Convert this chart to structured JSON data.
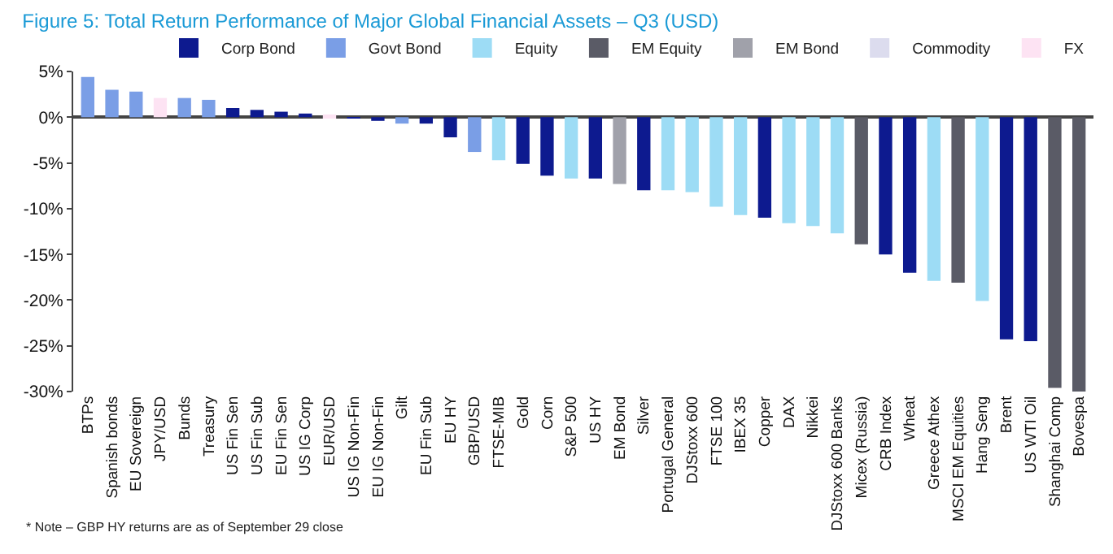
{
  "chart_data": {
    "type": "bar",
    "title": "Figure 5: Total Return Performance of Major Global Financial Assets – Q3 (USD)",
    "annotations": [
      "* Note – GBP HY returns are as of September 29 close"
    ],
    "categories": [
      "BTPs",
      "Spanish bonds",
      "EU Sovereign",
      "JPY/USD",
      "Bunds",
      "Treasury",
      "US Fin Sen",
      "US Fin Sub",
      "EU Fin Sen",
      "US IG Corp",
      "EUR/USD",
      "US IG Non-Fin",
      "EU IG Non-Fin",
      "Gilt",
      "EU Fin Sub",
      "EU HY",
      "GBP/USD",
      "FTSE-MIB",
      "Gold",
      "Corn",
      "S&P 500",
      "US HY",
      "EM Bond",
      "Silver",
      "Portugal General",
      "DJStoxx 600",
      "FTSE 100",
      "IBEX 35",
      "Copper",
      "DAX",
      "Nikkei",
      "DJStoxx 600 Banks",
      "Micex (Russia)",
      "CRB Index",
      "Wheat",
      "Greece Athex",
      "MSCI EM Equities",
      "Hang Seng",
      "Brent",
      "US WTI Oil",
      "Shanghai Comp",
      "Bovespa"
    ],
    "series": [
      {
        "name": "Corp Bond",
        "color": "#0d1a8f",
        "values": [
          null,
          null,
          null,
          null,
          null,
          null,
          1.0,
          0.8,
          0.6,
          0.4,
          null,
          -0.1,
          -0.4,
          null,
          -0.7,
          -2.2,
          null,
          null,
          -5.1,
          -6.4,
          null,
          -6.7,
          null,
          -8.0,
          null,
          null,
          null,
          null,
          -11.0,
          null,
          null,
          null,
          null,
          -15.0,
          -17.0,
          null,
          null,
          null,
          -24.3,
          -24.5,
          null,
          null
        ]
      },
      {
        "name": "Govt Bond",
        "color": "#7a9ee6",
        "values": [
          4.4,
          3.0,
          2.8,
          null,
          2.1,
          1.9,
          null,
          null,
          null,
          null,
          null,
          null,
          null,
          -0.7,
          null,
          null,
          -3.8,
          null,
          null,
          null,
          null,
          null,
          null,
          null,
          null,
          null,
          null,
          null,
          null,
          null,
          null,
          null,
          null,
          null,
          null,
          null,
          null,
          null,
          null,
          null,
          null,
          null
        ]
      },
      {
        "name": "Equity",
        "color": "#9ddcf5",
        "values": [
          null,
          null,
          null,
          null,
          null,
          null,
          null,
          null,
          null,
          null,
          null,
          null,
          null,
          null,
          null,
          null,
          null,
          -4.7,
          null,
          null,
          -6.7,
          null,
          null,
          null,
          -8.0,
          -8.2,
          -9.8,
          -10.7,
          null,
          -11.6,
          -11.9,
          -12.7,
          null,
          null,
          null,
          -17.9,
          null,
          -20.1,
          null,
          null,
          null,
          null
        ]
      },
      {
        "name": "EM Equity",
        "color": "#5a5b66",
        "values": [
          null,
          null,
          null,
          null,
          null,
          null,
          null,
          null,
          null,
          null,
          null,
          null,
          null,
          null,
          null,
          null,
          null,
          null,
          null,
          null,
          null,
          null,
          null,
          null,
          null,
          null,
          null,
          null,
          null,
          null,
          null,
          null,
          -13.9,
          null,
          null,
          null,
          -18.1,
          null,
          null,
          null,
          -29.6,
          -30.0
        ]
      },
      {
        "name": "EM Bond",
        "color": "#a0a1aa",
        "values": [
          null,
          null,
          null,
          null,
          null,
          null,
          null,
          null,
          null,
          null,
          null,
          null,
          null,
          null,
          null,
          null,
          null,
          null,
          null,
          null,
          null,
          null,
          -7.3,
          null,
          null,
          null,
          null,
          null,
          null,
          null,
          null,
          null,
          null,
          null,
          null,
          null,
          null,
          null,
          null,
          null,
          null,
          null
        ]
      },
      {
        "name": "Commodity",
        "color": "#dcdcee",
        "values": [
          null,
          null,
          null,
          null,
          null,
          null,
          null,
          null,
          null,
          null,
          null,
          null,
          null,
          null,
          null,
          null,
          null,
          null,
          null,
          null,
          null,
          null,
          null,
          null,
          null,
          null,
          null,
          null,
          null,
          null,
          null,
          null,
          null,
          null,
          null,
          null,
          null,
          null,
          null,
          null,
          null,
          null
        ]
      },
      {
        "name": "FX",
        "color": "#fde3f3",
        "values": [
          null,
          null,
          null,
          2.1,
          null,
          null,
          null,
          null,
          null,
          null,
          0.3,
          null,
          null,
          null,
          null,
          null,
          null,
          null,
          null,
          null,
          null,
          null,
          null,
          null,
          null,
          null,
          null,
          null,
          null,
          null,
          null,
          null,
          null,
          null,
          null,
          null,
          null,
          null,
          null,
          null,
          null,
          null
        ]
      }
    ],
    "ylim": [
      -30,
      5
    ],
    "yticks": [
      {
        "value": 5,
        "label": "5%"
      },
      {
        "value": 0,
        "label": "0%"
      },
      {
        "value": -5,
        "label": "-5%"
      },
      {
        "value": -10,
        "label": "-10%"
      },
      {
        "value": -15,
        "label": "-15%"
      },
      {
        "value": -20,
        "label": "-20%"
      },
      {
        "value": -25,
        "label": "-25%"
      },
      {
        "value": -30,
        "label": "-30%"
      }
    ],
    "legend": "top right"
  }
}
